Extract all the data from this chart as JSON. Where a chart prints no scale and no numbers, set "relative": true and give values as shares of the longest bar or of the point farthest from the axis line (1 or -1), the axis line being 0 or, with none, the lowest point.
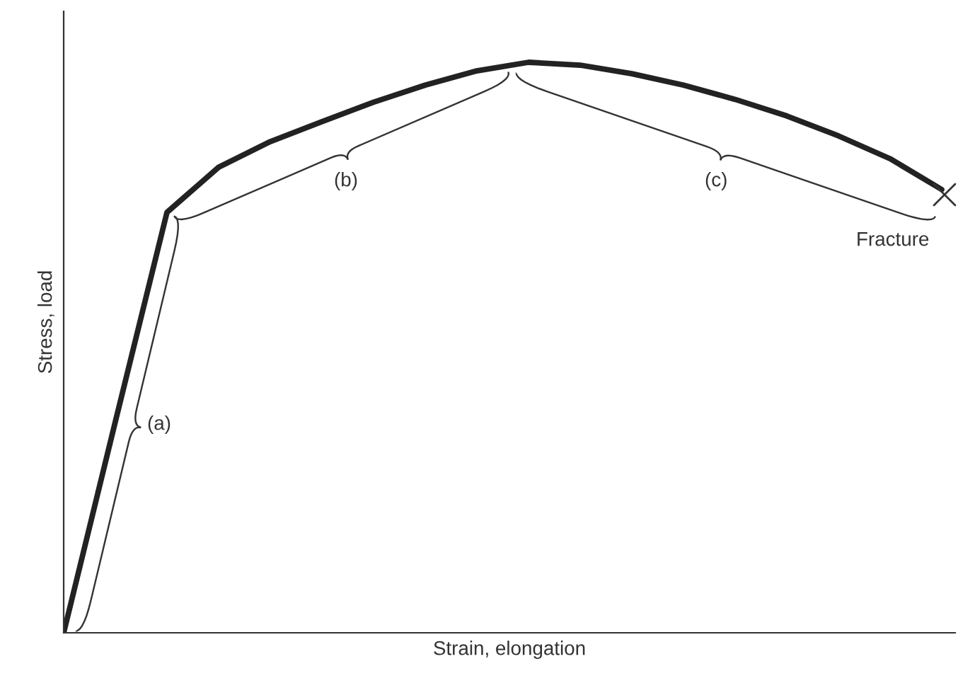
{
  "chart_data": {
    "type": "line",
    "relative": true,
    "xlabel": "Strain, elongation",
    "ylabel": "Stress, load",
    "categories": [
      null,
      null,
      null,
      null,
      null,
      null,
      null,
      null,
      null,
      null,
      null,
      null,
      null,
      null,
      null,
      null,
      null,
      null
    ],
    "series": [
      {
        "color": "#222222",
        "values": [
          0,
          0.37,
          0.737,
          0.816,
          0.861,
          0.896,
          0.93,
          0.96,
          0.985,
          1.0,
          0.995,
          0.98,
          0.96,
          0.935,
          0.906,
          0.871,
          0.831,
          0.777
        ]
      }
    ],
    "annotations": [
      "(a)",
      "(b)",
      "(c)",
      "Fracture"
    ],
    "legend": false,
    "marker": "none",
    "line_style": "solid"
  }
}
